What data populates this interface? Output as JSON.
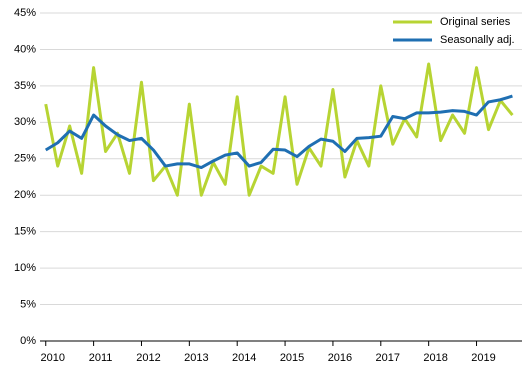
{
  "chart_data": {
    "type": "line",
    "x": [
      2010,
      2010.25,
      2010.5,
      2010.75,
      2011,
      2011.25,
      2011.5,
      2011.75,
      2012,
      2012.25,
      2012.5,
      2012.75,
      2013,
      2013.25,
      2013.5,
      2013.75,
      2014,
      2014.25,
      2014.5,
      2014.75,
      2015,
      2015.25,
      2015.5,
      2015.75,
      2016,
      2016.25,
      2016.5,
      2016.75,
      2017,
      2017.25,
      2017.5,
      2017.75,
      2018,
      2018.25,
      2018.5,
      2018.75,
      2019,
      2019.25,
      2019.5,
      2019.75
    ],
    "series": [
      {
        "name": "Original series",
        "color": "#b7d433",
        "values": [
          32.5,
          24,
          29.5,
          23,
          37.5,
          26,
          28.5,
          23,
          35.5,
          22,
          24,
          20,
          32.5,
          20,
          24.5,
          21.5,
          33.5,
          20,
          24,
          23,
          33.5,
          21.5,
          26.5,
          24,
          34.5,
          22.5,
          27.5,
          24,
          35,
          27,
          30.5,
          28,
          38,
          27.5,
          31,
          28.5,
          37.5,
          29,
          33,
          31
        ]
      },
      {
        "name": "Seasonally adj.",
        "color": "#1f6fb2",
        "values": [
          26.2,
          27.2,
          28.8,
          27.8,
          31,
          29.5,
          28.3,
          27.5,
          27.8,
          26.2,
          24,
          24.3,
          24.3,
          23.8,
          24.7,
          25.5,
          25.8,
          24,
          24.5,
          26.3,
          26.2,
          25.3,
          26.7,
          27.7,
          27.4,
          26,
          27.8,
          27.9,
          28.1,
          30.8,
          30.5,
          31.3,
          31.3,
          31.4,
          31.6,
          31.5,
          31,
          32.8,
          33.1,
          33.6
        ]
      }
    ],
    "xlim": [
      2009.88,
      2019.95
    ],
    "xticks": [
      2010,
      2011,
      2012,
      2013,
      2014,
      2015,
      2016,
      2017,
      2018,
      2019
    ],
    "ylim": [
      0,
      45
    ],
    "yticks": [
      {
        "value": 0,
        "label": "0%"
      },
      {
        "value": 5,
        "label": "5%"
      },
      {
        "value": 10,
        "label": "10%"
      },
      {
        "value": 15,
        "label": "15%"
      },
      {
        "value": 20,
        "label": "20%"
      },
      {
        "value": 25,
        "label": "25%"
      },
      {
        "value": 30,
        "label": "30%"
      },
      {
        "value": 35,
        "label": "35%"
      },
      {
        "value": 40,
        "label": "40%"
      },
      {
        "value": 45,
        "label": "45%"
      }
    ],
    "grid": true
  }
}
